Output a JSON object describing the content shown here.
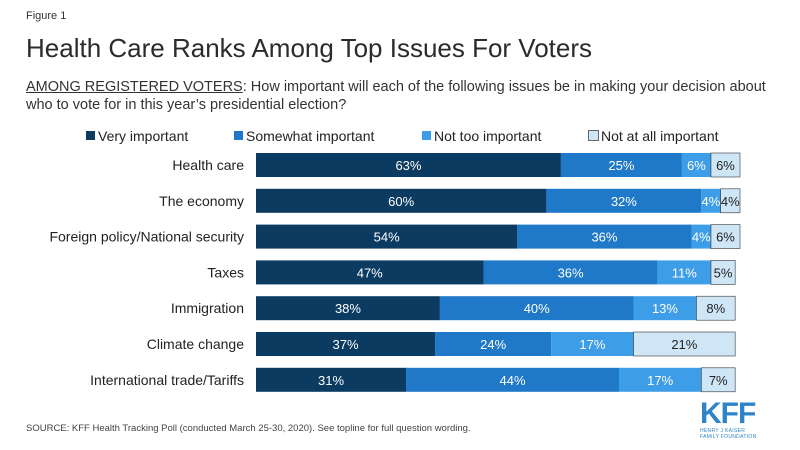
{
  "figure_label": "Figure 1",
  "title": "Health Care Ranks Among Top Issues For Voters",
  "subtitle_lead": "AMONG REGISTERED VOTERS",
  "subtitle_rest": ": How important will each of the following issues be in making your decision about who to vote for in this year’s presidential election?",
  "source": "SOURCE: KFF Health Tracking Poll (conducted March 25-30, 2020). See topline for full question wording.",
  "logo": {
    "name": "KFF",
    "tagline_1": "HENRY J KAISER",
    "tagline_2": "FAMILY FOUNDATION"
  },
  "colors": {
    "very_important": "#0c3b62",
    "somewhat_important": "#1f78c8",
    "not_too_important": "#3d9de6",
    "not_at_all_important": "#cfe6f7",
    "label_light": "#ffffff",
    "label_dark": "#222222"
  },
  "chart_data": {
    "type": "bar",
    "orientation": "horizontal",
    "stacked": true,
    "categories": [
      "Health care",
      "The economy",
      "Foreign policy/National security",
      "Taxes",
      "Immigration",
      "Climate change",
      "International trade/Tariffs"
    ],
    "series": [
      {
        "name": "Very important",
        "values": [
          63,
          60,
          54,
          47,
          38,
          37,
          31
        ]
      },
      {
        "name": "Somewhat important",
        "values": [
          25,
          32,
          36,
          36,
          40,
          24,
          44
        ]
      },
      {
        "name": "Not too important",
        "values": [
          6,
          4,
          4,
          11,
          13,
          17,
          17
        ]
      },
      {
        "name": "Not at all important",
        "values": [
          6,
          4,
          6,
          5,
          8,
          21,
          7
        ]
      }
    ],
    "value_suffix": "%",
    "xlim": [
      0,
      100
    ],
    "legend_position": "top",
    "grid": false
  }
}
